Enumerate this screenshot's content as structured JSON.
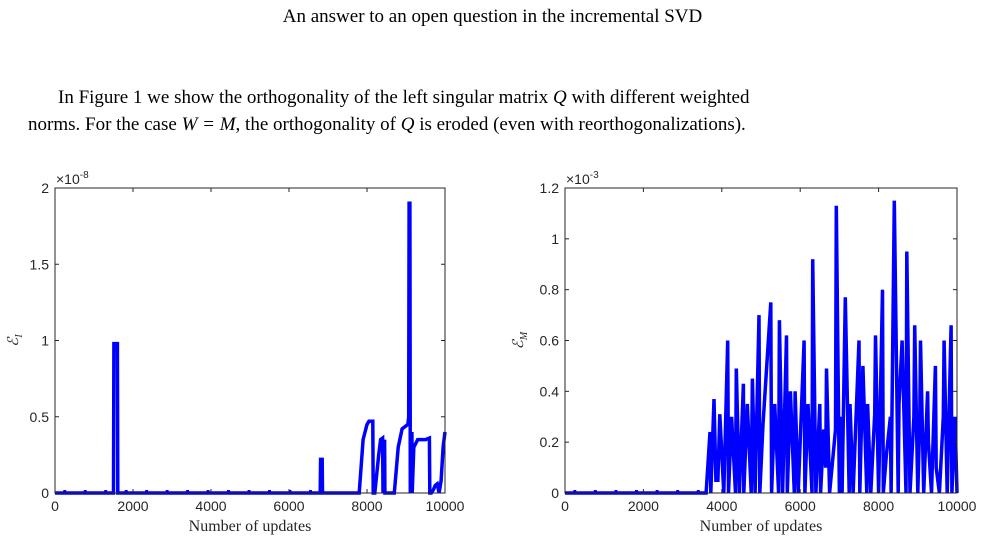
{
  "page": {
    "header": "An answer to an open question in the incremental SVD",
    "paragraph": {
      "line1_prefix": "In Figure 1 we show the orthogonality of the left singular matrix ",
      "line1_var": "Q",
      "line1_suffix": " with different weighted",
      "line2_a": "norms. For the case ",
      "line2_eq": "W = M",
      "line2_b": ", the orthogonality of ",
      "line2_var": "Q",
      "line2_c": " is eroded (even with reorthogonalizations)."
    }
  },
  "chart_data": [
    {
      "type": "line",
      "title": "",
      "xlabel": "Number of updates",
      "ylabel": "ℰ_I",
      "ylabel_main": "ℰ",
      "ylabel_sub": "I",
      "exponent_label": "×10",
      "exponent_power": "-8",
      "xlim": [
        0,
        10000
      ],
      "ylim": [
        0,
        2
      ],
      "xticks": [
        0,
        2000,
        4000,
        6000,
        8000,
        10000
      ],
      "xtick_labels": [
        "0",
        "2000",
        "4000",
        "6000",
        "8000",
        "10000"
      ],
      "yticks": [
        0,
        0.5,
        1,
        1.5,
        2
      ],
      "ytick_labels": [
        "0",
        "0.5",
        "1",
        "1.5",
        "2"
      ],
      "grid": false,
      "color": "#0000ff",
      "series": [
        {
          "x": [
            0,
            1500,
            1510,
            1550,
            1560,
            1600,
            1610,
            6800,
            6810,
            6850,
            6860,
            7800,
            7900,
            8000,
            8050,
            8100,
            8150,
            8160,
            8200,
            8300,
            8350,
            8400,
            8410,
            8450,
            8460,
            8700,
            8800,
            8900,
            9000,
            9050,
            9070,
            9080,
            9100,
            9110,
            9120,
            9150,
            9160,
            9200,
            9300,
            9400,
            9500,
            9600,
            9610,
            9650,
            9700,
            9750,
            9800,
            9850,
            9900,
            9950,
            10000
          ],
          "y": [
            0,
            0,
            0.98,
            0.98,
            0.98,
            0.98,
            0,
            0,
            0.22,
            0.22,
            0,
            0,
            0.35,
            0.45,
            0.47,
            0.47,
            0.47,
            0,
            0,
            0.25,
            0.35,
            0.36,
            0,
            0.35,
            0,
            0,
            0.3,
            0.42,
            0.44,
            0.45,
            0.5,
            1.9,
            1.9,
            0,
            0.35,
            0.4,
            0,
            0.3,
            0.35,
            0.35,
            0.35,
            0.36,
            0,
            0,
            0.02,
            0.05,
            0.06,
            0,
            0.08,
            0.3,
            0.4
          ]
        }
      ]
    },
    {
      "type": "line",
      "title": "",
      "xlabel": "Number of updates",
      "ylabel": "ℰ_M",
      "ylabel_main": "ℰ",
      "ylabel_sub": "M",
      "exponent_label": "×10",
      "exponent_power": "-3",
      "xlim": [
        0,
        10000
      ],
      "ylim": [
        0,
        1.2
      ],
      "xticks": [
        0,
        2000,
        4000,
        6000,
        8000,
        10000
      ],
      "xtick_labels": [
        "0",
        "2000",
        "4000",
        "6000",
        "8000",
        "10000"
      ],
      "yticks": [
        0,
        0.2,
        0.4,
        0.6,
        0.8,
        1,
        1.2
      ],
      "ytick_labels": [
        "0",
        "0.2",
        "0.4",
        "0.6",
        "0.8",
        "1",
        "1.2"
      ],
      "grid": false,
      "color": "#0000ff",
      "series": [
        {
          "x": [
            0,
            3600,
            3700,
            3720,
            3800,
            3850,
            3900,
            3950,
            4050,
            4150,
            4170,
            4250,
            4350,
            4370,
            4450,
            4550,
            4560,
            4650,
            4750,
            4780,
            4850,
            4950,
            4970,
            5050,
            5250,
            5270,
            5350,
            5450,
            5470,
            5550,
            5650,
            5670,
            5750,
            5850,
            5870,
            5950,
            6100,
            6120,
            6200,
            6300,
            6320,
            6400,
            6500,
            6520,
            6600,
            6650,
            6670,
            6750,
            6900,
            6920,
            7000,
            7050,
            7070,
            7150,
            7250,
            7270,
            7350,
            7500,
            7520,
            7600,
            7700,
            7720,
            7800,
            7900,
            7920,
            8000,
            8100,
            8120,
            8200,
            8300,
            8320,
            8400,
            8500,
            8520,
            8600,
            8700,
            8720,
            8800,
            8900,
            8920,
            9000,
            9050,
            9070,
            9150,
            9250,
            9270,
            9350,
            9450,
            9470,
            9550,
            9650,
            9670,
            9750,
            9850,
            9870,
            9950,
            10000
          ],
          "y": [
            0,
            0,
            0.24,
            0,
            0.37,
            0.05,
            0.05,
            0.31,
            0,
            0.6,
            0,
            0.3,
            0,
            0.49,
            0,
            0.43,
            0,
            0.35,
            0,
            0.45,
            0,
            0.7,
            0,
            0.27,
            0.75,
            0,
            0.35,
            0,
            0.68,
            0,
            0.62,
            0,
            0.4,
            0,
            0.4,
            0,
            0.6,
            0,
            0.35,
            0,
            0.92,
            0,
            0.35,
            0,
            0.25,
            0.1,
            0.49,
            0,
            0.25,
            1.13,
            0,
            0.3,
            0,
            0.77,
            0,
            0.35,
            0,
            0.6,
            0,
            0.5,
            0,
            0.35,
            0,
            0.31,
            0.62,
            0,
            0.8,
            0,
            0.15,
            0.3,
            0,
            1.15,
            0,
            0.35,
            0.6,
            0,
            0.95,
            0,
            0.3,
            0.66,
            0,
            0.3,
            0.6,
            0,
            0.4,
            0.2,
            0,
            0.5,
            0.1,
            0,
            0.3,
            0.6,
            0,
            0.66,
            0,
            0.3,
            0
          ]
        }
      ]
    }
  ]
}
